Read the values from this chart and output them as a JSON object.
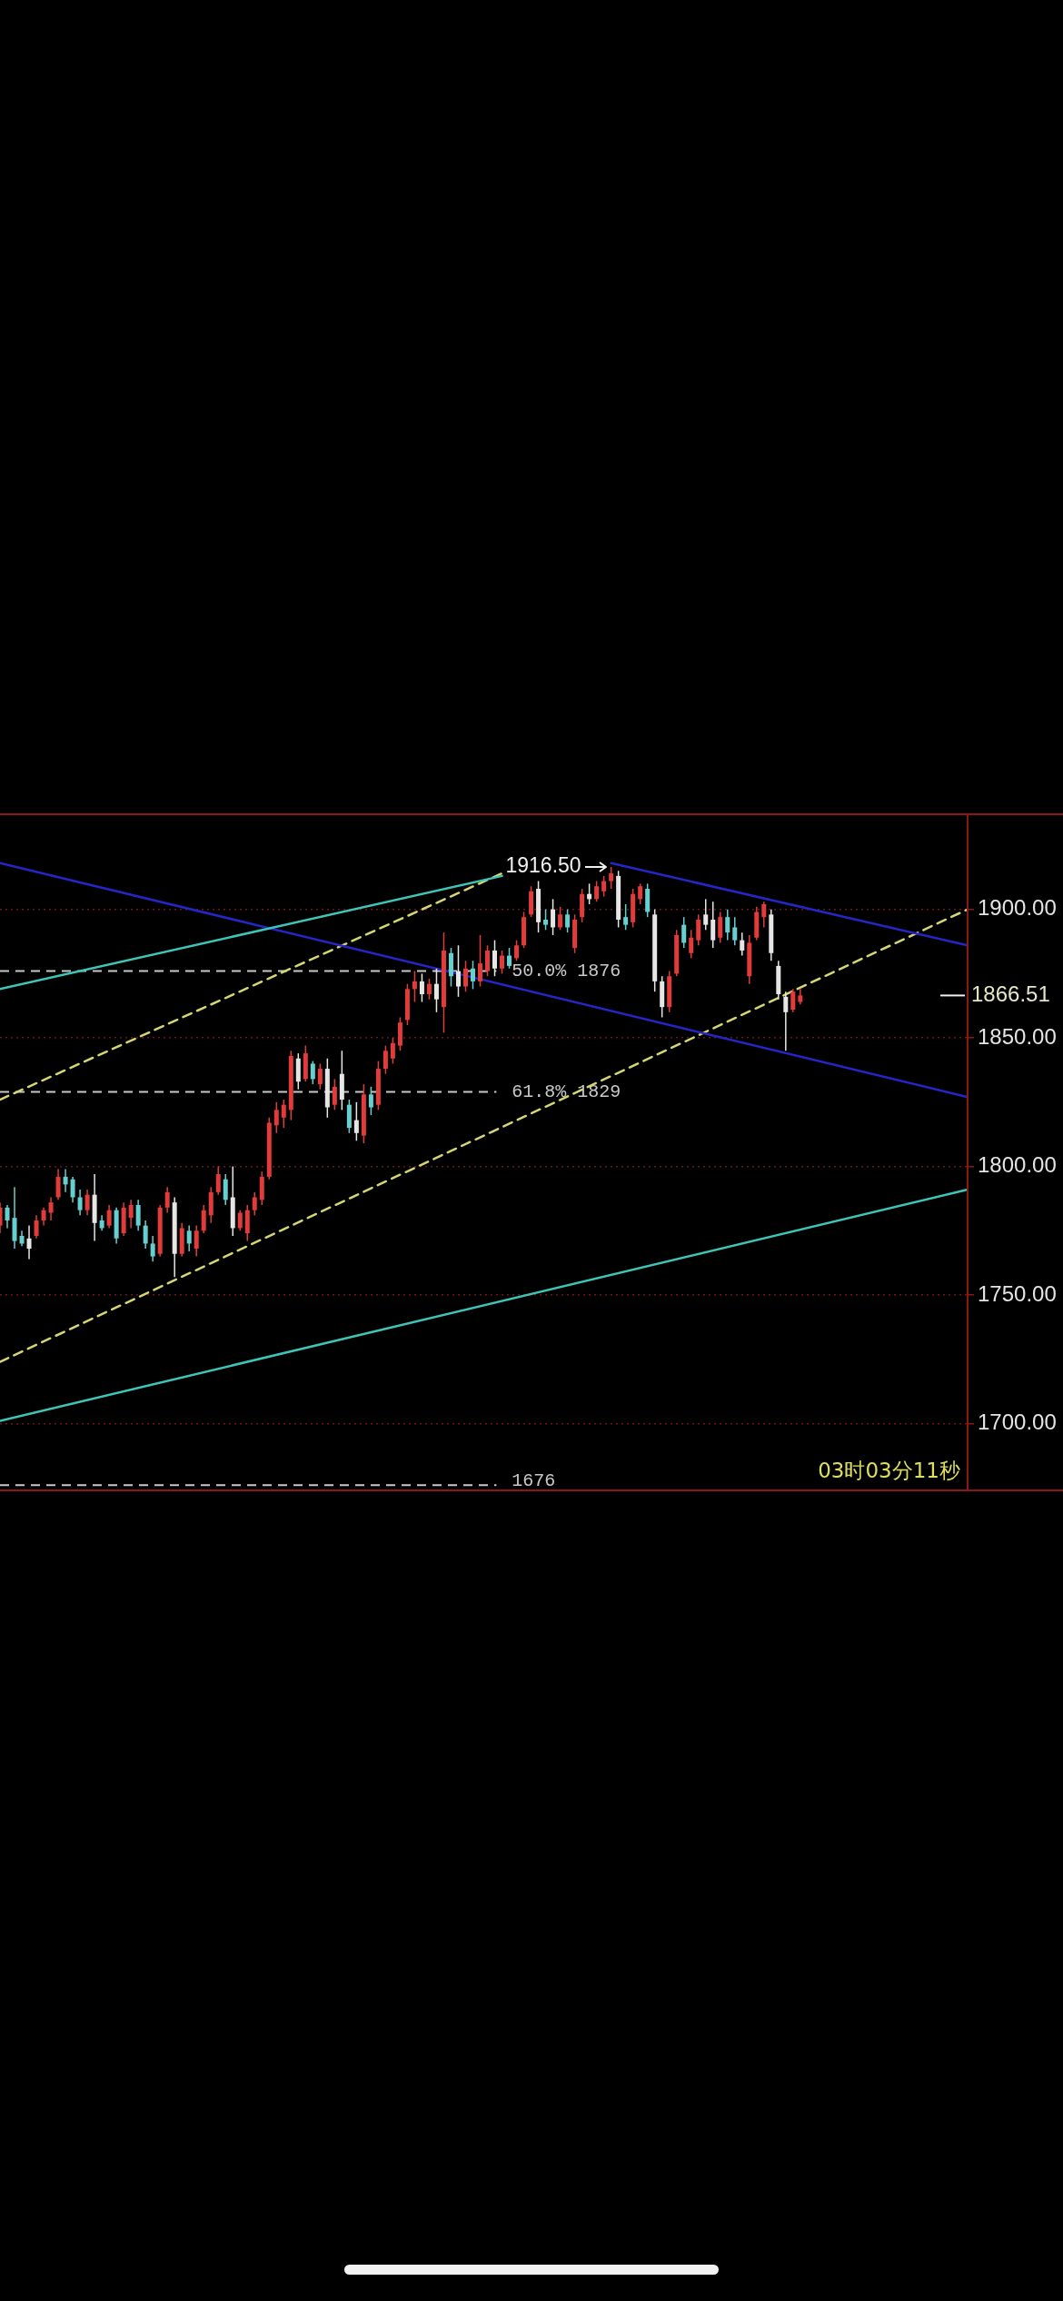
{
  "chart_data": {
    "type": "candlestick",
    "categories": [
      null,
      null,
      null,
      null,
      null,
      null,
      null,
      null,
      null,
      null,
      null,
      null,
      null,
      null,
      null,
      null,
      null,
      null,
      null,
      null,
      null,
      null,
      null,
      null,
      null,
      null,
      null,
      null,
      null,
      null,
      null,
      null,
      null,
      null,
      null,
      null,
      null,
      null,
      null,
      null,
      null,
      null,
      null,
      null,
      null,
      null,
      null,
      null,
      null,
      null,
      null,
      null,
      null,
      null,
      null,
      null,
      null,
      null,
      null,
      null,
      null,
      null,
      null,
      null,
      null,
      null,
      null,
      null,
      null,
      null,
      null,
      null,
      null,
      null,
      null,
      null,
      null,
      null,
      null,
      null,
      null,
      null,
      null,
      null,
      null,
      null,
      null,
      null,
      null,
      null,
      null,
      null,
      null,
      null,
      null,
      null,
      null,
      null,
      null,
      null,
      null,
      null,
      null,
      null,
      null,
      null,
      null,
      null,
      null,
      null,
      null,
      null,
      null,
      null,
      null,
      null,
      null,
      null,
      null,
      null,
      null,
      null,
      null,
      null,
      null,
      null,
      null,
      null,
      null,
      null,
      null,
      null,
      null,
      null
    ],
    "ohlc": [
      [
        1777,
        1786,
        1774,
        1784
      ],
      [
        1784,
        1785,
        1776,
        1779
      ],
      [
        1780,
        1792,
        1768,
        1771
      ],
      [
        1773,
        1775,
        1769,
        1770
      ],
      [
        1772,
        1777,
        1764,
        1768
      ],
      [
        1773,
        1781,
        1772,
        1779
      ],
      [
        1779,
        1784,
        1777,
        1783
      ],
      [
        1782,
        1788,
        1779,
        1786
      ],
      [
        1788,
        1799,
        1787,
        1796
      ],
      [
        1796,
        1799,
        1790,
        1793
      ],
      [
        1795,
        1796,
        1786,
        1788
      ],
      [
        1788,
        1791,
        1781,
        1783
      ],
      [
        1783,
        1791,
        1781,
        1789
      ],
      [
        1789,
        1797,
        1771,
        1778
      ],
      [
        1779,
        1781,
        1775,
        1776
      ],
      [
        1777,
        1785,
        1776,
        1783
      ],
      [
        1783,
        1784,
        1770,
        1772
      ],
      [
        1774,
        1786,
        1773,
        1784
      ],
      [
        1780,
        1787,
        1776,
        1785
      ],
      [
        1785,
        1787,
        1775,
        1777
      ],
      [
        1777,
        1779,
        1768,
        1770
      ],
      [
        1770,
        1773,
        1763,
        1765
      ],
      [
        1766,
        1785,
        1765,
        1784
      ],
      [
        1784,
        1792,
        1782,
        1790
      ],
      [
        1786,
        1788,
        1757,
        1766
      ],
      [
        1766,
        1778,
        1765,
        1776
      ],
      [
        1775,
        1777,
        1767,
        1770
      ],
      [
        1768,
        1777,
        1765,
        1775
      ],
      [
        1775,
        1785,
        1774,
        1783
      ],
      [
        1781,
        1792,
        1778,
        1790
      ],
      [
        1790,
        1800,
        1789,
        1797
      ],
      [
        1795,
        1797,
        1785,
        1787
      ],
      [
        1788,
        1800,
        1773,
        1776
      ],
      [
        1776,
        1783,
        1775,
        1782
      ],
      [
        1774,
        1785,
        1771,
        1783
      ],
      [
        1783,
        1790,
        1781,
        1788
      ],
      [
        1787,
        1798,
        1785,
        1796
      ],
      [
        1796,
        1819,
        1795,
        1817
      ],
      [
        1816,
        1825,
        1813,
        1822
      ],
      [
        1819,
        1826,
        1815,
        1824
      ],
      [
        1822,
        1845,
        1818,
        1843
      ],
      [
        1842,
        1844,
        1830,
        1833
      ],
      [
        1834,
        1847,
        1833,
        1844
      ],
      [
        1840,
        1841,
        1832,
        1834
      ],
      [
        1832,
        1840,
        1830,
        1838
      ],
      [
        1838,
        1842,
        1819,
        1823
      ],
      [
        1824,
        1834,
        1822,
        1831
      ],
      [
        1836,
        1845,
        1822,
        1826
      ],
      [
        1824,
        1826,
        1813,
        1815
      ],
      [
        1818,
        1825,
        1810,
        1813
      ],
      [
        1812,
        1832,
        1809,
        1828
      ],
      [
        1828,
        1831,
        1820,
        1823
      ],
      [
        1824,
        1841,
        1822,
        1838
      ],
      [
        1838,
        1847,
        1836,
        1845
      ],
      [
        1842,
        1850,
        1840,
        1848
      ],
      [
        1847,
        1858,
        1845,
        1856
      ],
      [
        1857,
        1871,
        1855,
        1869
      ],
      [
        1869,
        1876,
        1864,
        1872
      ],
      [
        1872,
        1875,
        1864,
        1867
      ],
      [
        1867,
        1873,
        1865,
        1871
      ],
      [
        1871,
        1877,
        1860,
        1865
      ],
      [
        1862,
        1891,
        1852,
        1884
      ],
      [
        1883,
        1885,
        1870,
        1874
      ],
      [
        1876,
        1886,
        1866,
        1870
      ],
      [
        1870,
        1880,
        1868,
        1877
      ],
      [
        1877,
        1880,
        1869,
        1872
      ],
      [
        1872,
        1890,
        1870,
        1879
      ],
      [
        1876,
        1886,
        1874,
        1884
      ],
      [
        1884,
        1888,
        1874,
        1877
      ],
      [
        1877,
        1884,
        1875,
        1882
      ],
      [
        1882,
        1885,
        1877,
        1878
      ],
      [
        1881,
        1888,
        1880,
        1886
      ],
      [
        1886,
        1899,
        1885,
        1897
      ],
      [
        1898,
        1909,
        1897,
        1907
      ],
      [
        1908,
        1911,
        1891,
        1895
      ],
      [
        1896,
        1900,
        1892,
        1894
      ],
      [
        1900,
        1904,
        1890,
        1893
      ],
      [
        1893,
        1901,
        1892,
        1898
      ],
      [
        1898,
        1900,
        1891,
        1893
      ],
      [
        1885,
        1898,
        1883,
        1896
      ],
      [
        1897,
        1908,
        1895,
        1906
      ],
      [
        1906,
        1910,
        1902,
        1904
      ],
      [
        1904,
        1911,
        1903,
        1909
      ],
      [
        1907,
        1913,
        1905,
        1911
      ],
      [
        1911,
        1916.5,
        1908,
        1914
      ],
      [
        1913,
        1915,
        1893,
        1896
      ],
      [
        1897,
        1902,
        1892,
        1894
      ],
      [
        1895,
        1908,
        1893,
        1906
      ],
      [
        1904,
        1910,
        1902,
        1909
      ],
      [
        1908,
        1910,
        1897,
        1899
      ],
      [
        1898,
        1900,
        1868,
        1872
      ],
      [
        1872,
        1874,
        1858,
        1862
      ],
      [
        1862,
        1876,
        1860,
        1874
      ],
      [
        1875,
        1892,
        1874,
        1890
      ],
      [
        1894,
        1897,
        1885,
        1887
      ],
      [
        1883,
        1892,
        1881,
        1889
      ],
      [
        1888,
        1898,
        1886,
        1896
      ],
      [
        1898,
        1904,
        1892,
        1894
      ],
      [
        1896,
        1903,
        1885,
        1888
      ],
      [
        1889,
        1899,
        1887,
        1897
      ],
      [
        1897,
        1900,
        1888,
        1891
      ],
      [
        1893,
        1897,
        1886,
        1888
      ],
      [
        1888,
        1891,
        1882,
        1884
      ],
      [
        1874,
        1890,
        1871,
        1887
      ],
      [
        1889,
        1901,
        1888,
        1899
      ],
      [
        1897,
        1903,
        1893,
        1902
      ],
      [
        1898,
        1900,
        1880,
        1883
      ],
      [
        1878,
        1880,
        1865,
        1867
      ],
      [
        1866,
        1868,
        1845,
        1860
      ],
      [
        1861,
        1869,
        1860,
        1868
      ],
      [
        1864,
        1869,
        1863,
        1866.51
      ],
      null,
      null,
      null,
      null,
      null,
      null,
      null,
      null,
      null,
      null,
      null,
      null,
      null,
      null,
      null,
      null,
      null,
      null,
      null,
      null,
      null,
      null,
      null
    ],
    "colors": [
      "#e23b3b",
      "#66d0d0",
      "#66d0d0",
      "#66d0d0",
      "#e6e6e6",
      "#e23b3b",
      "#e23b3b",
      "#e23b3b",
      "#e23b3b",
      "#66d0d0",
      "#66d0d0",
      "#66d0d0",
      "#e23b3b",
      "#e6e6e6",
      "#66d0d0",
      "#e23b3b",
      "#66d0d0",
      "#e23b3b",
      "#e23b3b",
      "#66d0d0",
      "#66d0d0",
      "#66d0d0",
      "#e23b3b",
      "#e23b3b",
      "#e6e6e6",
      "#e23b3b",
      "#66d0d0",
      "#e23b3b",
      "#e23b3b",
      "#e23b3b",
      "#e23b3b",
      "#66d0d0",
      "#e6e6e6",
      "#e23b3b",
      "#e23b3b",
      "#e23b3b",
      "#e23b3b",
      "#e23b3b",
      "#e23b3b",
      "#e23b3b",
      "#e23b3b",
      "#e6e6e6",
      "#e23b3b",
      "#66d0d0",
      "#e23b3b",
      "#e6e6e6",
      "#e23b3b",
      "#e6e6e6",
      "#66d0d0",
      "#e6e6e6",
      "#e23b3b",
      "#66d0d0",
      "#e23b3b",
      "#e23b3b",
      "#e23b3b",
      "#e23b3b",
      "#e23b3b",
      "#e23b3b",
      "#e6e6e6",
      "#e23b3b",
      "#e6e6e6",
      "#e23b3b",
      "#66d0d0",
      "#e6e6e6",
      "#e23b3b",
      "#66d0d0",
      "#e23b3b",
      "#e23b3b",
      "#e6e6e6",
      "#e23b3b",
      "#66d0d0",
      "#e23b3b",
      "#e23b3b",
      "#e23b3b",
      "#e6e6e6",
      "#66d0d0",
      "#e6e6e6",
      "#e23b3b",
      "#66d0d0",
      "#e23b3b",
      "#e23b3b",
      "#e6e6e6",
      "#e23b3b",
      "#e23b3b",
      "#e23b3b",
      "#e6e6e6",
      "#66d0d0",
      "#e23b3b",
      "#e23b3b",
      "#66d0d0",
      "#e6e6e6",
      "#e6e6e6",
      "#e23b3b",
      "#e23b3b",
      "#66d0d0",
      "#e23b3b",
      "#e23b3b",
      "#e6e6e6",
      "#e6e6e6",
      "#e23b3b",
      "#66d0d0",
      "#66d0d0",
      "#e6e6e6",
      "#e23b3b",
      "#e23b3b",
      "#e23b3b",
      "#e6e6e6",
      "#e6e6e6",
      "#e6e6e6",
      "#e23b3b",
      "#e23b3b",
      null,
      null,
      null,
      null,
      null,
      null,
      null,
      null,
      null,
      null,
      null,
      null,
      null,
      null,
      null,
      null,
      null,
      null,
      null,
      null,
      null,
      null,
      null
    ],
    "series": [
      {
        "type": "line",
        "color": "#3fc4b8",
        "values": [
          1869,
          null,
          null,
          null,
          null,
          null,
          null,
          null,
          null,
          null,
          null,
          null,
          null,
          null,
          null,
          null,
          null,
          null,
          null,
          null,
          null,
          null,
          null,
          null,
          null,
          null,
          null,
          null,
          null,
          null,
          null,
          null,
          null,
          null,
          null,
          null,
          null,
          null,
          null,
          null,
          null,
          null,
          null,
          null,
          null,
          null,
          null,
          null,
          null,
          null,
          null,
          null,
          null,
          null,
          null,
          null,
          null,
          null,
          null,
          null,
          null,
          null,
          null,
          null,
          null,
          null,
          null,
          null,
          null,
          1913,
          null,
          null,
          null,
          null,
          null,
          null,
          null,
          null,
          null,
          null,
          null,
          null,
          null,
          null,
          null,
          null,
          null,
          null,
          null,
          null,
          null,
          null,
          null,
          null,
          null,
          null,
          null,
          null,
          null,
          null,
          null,
          null,
          null,
          null,
          null,
          null,
          null,
          null,
          null,
          null,
          null,
          null,
          null,
          null,
          null,
          null,
          null,
          null,
          null,
          null,
          null,
          null,
          null,
          null,
          null,
          null,
          null,
          null,
          null,
          null,
          null,
          null,
          null,
          null
        ]
      },
      {
        "type": "line",
        "color": "#3fc4b8",
        "values": [
          1701,
          null,
          null,
          null,
          null,
          null,
          null,
          null,
          null,
          null,
          null,
          null,
          null,
          null,
          null,
          null,
          null,
          null,
          null,
          null,
          null,
          null,
          null,
          null,
          null,
          null,
          null,
          null,
          null,
          null,
          null,
          null,
          null,
          null,
          null,
          null,
          null,
          null,
          null,
          null,
          null,
          null,
          null,
          null,
          null,
          null,
          null,
          null,
          null,
          null,
          null,
          null,
          null,
          null,
          null,
          null,
          null,
          null,
          null,
          null,
          null,
          null,
          null,
          null,
          null,
          null,
          null,
          null,
          null,
          null,
          null,
          null,
          null,
          null,
          null,
          null,
          null,
          null,
          null,
          null,
          null,
          null,
          null,
          null,
          null,
          null,
          null,
          null,
          null,
          null,
          null,
          null,
          null,
          null,
          null,
          null,
          null,
          null,
          null,
          null,
          null,
          null,
          null,
          null,
          null,
          null,
          null,
          null,
          null,
          null,
          null,
          null,
          null,
          null,
          null,
          null,
          null,
          null,
          null,
          null,
          null,
          null,
          null,
          null,
          null,
          null,
          null,
          null,
          null,
          null,
          null,
          null,
          null,
          1791
        ]
      },
      {
        "type": "line",
        "color": "#2626c8",
        "values": [
          1918,
          null,
          null,
          null,
          null,
          null,
          null,
          null,
          null,
          null,
          null,
          null,
          null,
          null,
          null,
          null,
          null,
          null,
          null,
          null,
          null,
          null,
          null,
          null,
          null,
          null,
          null,
          null,
          null,
          null,
          null,
          null,
          null,
          null,
          null,
          null,
          null,
          null,
          null,
          null,
          null,
          null,
          null,
          null,
          null,
          null,
          null,
          null,
          null,
          null,
          null,
          null,
          null,
          null,
          null,
          null,
          null,
          null,
          null,
          null,
          null,
          null,
          null,
          null,
          null,
          null,
          null,
          null,
          null,
          null,
          null,
          null,
          null,
          null,
          null,
          null,
          null,
          null,
          null,
          null,
          null,
          null,
          null,
          null,
          null,
          null,
          null,
          null,
          null,
          null,
          null,
          null,
          null,
          null,
          null,
          null,
          null,
          null,
          null,
          null,
          null,
          null,
          null,
          null,
          null,
          null,
          null,
          null,
          null,
          null,
          null,
          null,
          null,
          null,
          null,
          null,
          null,
          null,
          null,
          null,
          null,
          null,
          null,
          null,
          null,
          null,
          null,
          null,
          null,
          null,
          null,
          null,
          null,
          1827
        ]
      },
      {
        "type": "line",
        "color": "#2626c8",
        "values": [
          null,
          null,
          null,
          null,
          null,
          null,
          null,
          null,
          null,
          null,
          null,
          null,
          null,
          null,
          null,
          null,
          null,
          null,
          null,
          null,
          null,
          null,
          null,
          null,
          null,
          null,
          null,
          null,
          null,
          null,
          null,
          null,
          null,
          null,
          null,
          null,
          null,
          null,
          null,
          null,
          null,
          null,
          null,
          null,
          null,
          null,
          null,
          null,
          null,
          null,
          null,
          null,
          null,
          null,
          null,
          null,
          null,
          null,
          null,
          null,
          null,
          null,
          null,
          null,
          null,
          null,
          null,
          null,
          null,
          null,
          null,
          null,
          null,
          null,
          null,
          null,
          null,
          null,
          null,
          null,
          null,
          null,
          null,
          null,
          1918,
          null,
          null,
          null,
          null,
          null,
          null,
          null,
          null,
          null,
          null,
          null,
          null,
          null,
          null,
          null,
          null,
          null,
          null,
          null,
          null,
          null,
          null,
          null,
          null,
          null,
          null,
          null,
          null,
          null,
          null,
          null,
          null,
          null,
          null,
          null,
          null,
          null,
          null,
          null,
          null,
          null,
          null,
          null,
          null,
          null,
          null,
          null,
          null,
          1886
        ]
      },
      {
        "type": "line",
        "color": "#d6d672",
        "line_style": "dashed",
        "values": [
          1826,
          null,
          null,
          null,
          null,
          null,
          null,
          null,
          null,
          null,
          null,
          null,
          null,
          null,
          null,
          null,
          null,
          null,
          null,
          null,
          null,
          null,
          null,
          null,
          null,
          null,
          null,
          null,
          null,
          null,
          null,
          null,
          null,
          null,
          null,
          null,
          null,
          null,
          null,
          null,
          null,
          null,
          null,
          null,
          null,
          null,
          null,
          null,
          null,
          null,
          null,
          null,
          null,
          null,
          null,
          null,
          null,
          null,
          null,
          null,
          null,
          null,
          null,
          null,
          null,
          null,
          null,
          null,
          null,
          1914,
          null,
          null,
          null,
          null,
          null,
          null,
          null,
          null,
          null,
          null,
          null,
          null,
          null,
          null,
          null,
          null,
          null,
          null,
          null,
          null,
          null,
          null,
          null,
          null,
          null,
          null,
          null,
          null,
          null,
          null,
          null,
          null,
          null,
          null,
          null,
          null,
          null,
          null,
          null,
          null,
          null,
          null,
          null,
          null,
          null,
          null,
          null,
          null,
          null,
          null,
          null,
          null,
          null,
          null,
          null,
          null,
          null,
          null,
          null,
          null,
          null,
          null,
          null,
          null
        ]
      },
      {
        "type": "line",
        "color": "#d6d672",
        "line_style": "dashed",
        "values": [
          1724,
          null,
          null,
          null,
          null,
          null,
          null,
          null,
          null,
          null,
          null,
          null,
          null,
          null,
          null,
          null,
          null,
          null,
          null,
          null,
          null,
          null,
          null,
          null,
          null,
          null,
          null,
          null,
          null,
          null,
          null,
          null,
          null,
          null,
          null,
          null,
          null,
          null,
          null,
          null,
          null,
          null,
          null,
          null,
          null,
          null,
          null,
          null,
          null,
          null,
          null,
          null,
          null,
          null,
          null,
          null,
          null,
          null,
          null,
          null,
          null,
          null,
          null,
          null,
          null,
          null,
          null,
          null,
          null,
          null,
          null,
          null,
          null,
          null,
          null,
          null,
          null,
          null,
          null,
          null,
          null,
          null,
          null,
          null,
          null,
          null,
          null,
          null,
          null,
          null,
          null,
          null,
          null,
          null,
          null,
          null,
          null,
          null,
          null,
          null,
          null,
          null,
          null,
          null,
          null,
          null,
          null,
          null,
          null,
          null,
          null,
          null,
          null,
          null,
          null,
          null,
          null,
          null,
          null,
          null,
          null,
          null,
          null,
          null,
          null,
          null,
          null,
          null,
          null,
          null,
          null,
          null,
          null,
          1900
        ]
      }
    ],
    "ylim": [
      1674,
      1937
    ],
    "yticks": [
      {
        "value": 1700,
        "label": "1700.00"
      },
      {
        "value": 1750,
        "label": "1750.00"
      },
      {
        "value": 1800,
        "label": "1800.00"
      },
      {
        "value": 1850,
        "label": "1850.00"
      },
      {
        "value": 1900,
        "label": "1900.00"
      }
    ],
    "grid": "y",
    "tick_labels": "y",
    "ref_lines": [
      {
        "axis": "y",
        "value": 1876,
        "label": "50.0% 1876",
        "color": "#c8c8c8",
        "line_style": "dashed"
      },
      {
        "axis": "y",
        "value": 1829,
        "label": "61.8% 1829",
        "color": "#c8c8c8",
        "line_style": "dashed"
      },
      {
        "axis": "y",
        "value": 1676,
        "label": "1676",
        "color": "#c8c8c8",
        "line_style": "dashed"
      }
    ],
    "annotations": [
      "1916.50",
      "1866.51",
      "03时03分11秒"
    ]
  }
}
